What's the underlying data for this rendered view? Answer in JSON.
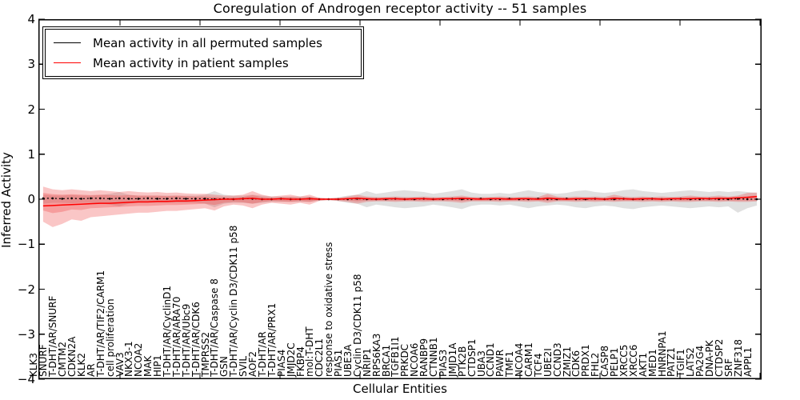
{
  "figure": {
    "title": "Coregulation of Androgen receptor activity -- 51 samples",
    "xlabel": "Cellular Entities",
    "ylabel": "Inferred Activity"
  },
  "legend": {
    "items": [
      {
        "label": "Mean activity in all permuted samples",
        "color": "#000000"
      },
      {
        "label": "Mean activity in patient samples",
        "color": "#ff0000"
      }
    ]
  },
  "axes": {
    "y_tick_values": [
      4,
      3,
      2,
      1,
      0,
      -1,
      -2,
      -3,
      -4
    ],
    "y_tick_labels": [
      "4",
      "3",
      "2",
      "1",
      "0",
      "−1",
      "−2",
      "−3",
      "−4"
    ]
  },
  "chart_data": {
    "type": "line",
    "title": "Coregulation of Androgen receptor activity -- 51 samples",
    "xlabel": "Cellular Entities",
    "ylabel": "Inferred Activity",
    "ylim": [
      -4,
      4
    ],
    "grid": false,
    "legend_position": "upper left",
    "categories": [
      "KLK3",
      "SNURF",
      "T-DHT/AR/SNURF",
      "CMTM2",
      "CDKN2A",
      "KLK2",
      "AR",
      "T-DHT/AR/TIF2/CARM1",
      "cell proliferation",
      "VAV3",
      "NKX3-1",
      "NCOA2",
      "MAK",
      "HIP1",
      "T-DHT/AR/CyclinD1",
      "T-DHT/AR/ARA70",
      "T-DHT/AR/Ubc9",
      "T-DHT/AR/CDK6",
      "TMPRSS2",
      "T-DHT/AR/Caspase 8",
      "GSN",
      "T-DHT/AR/Cyclin D3/CDK11 p58",
      "SVIL",
      "AOF2",
      "T-DHT/AR",
      "T-DHT/AR/PRX1",
      "PIAS4",
      "JMJD2C",
      "FKBP4",
      "mol:T-DHT",
      "CDC2L1",
      "response to oxidative stress",
      "PIAS1",
      "UBE3A",
      "Cyclin D3/CDK11 p58",
      "NRIP1",
      "RPS6KA3",
      "BRCA1",
      "TGFB1I1",
      "PRKDC",
      "NCOA6",
      "RANBP9",
      "CTNNB1",
      "PIAS3",
      "JMJD1A",
      "PTK2B",
      "CTDSP1",
      "UBA3",
      "CCND1",
      "PAWR",
      "TMF1",
      "NCOA4",
      "CARM1",
      "TCF4",
      "UBE2I",
      "CCND3",
      "ZMIZ1",
      "CDK6",
      "PRDX1",
      "FHL2",
      "CASP8",
      "PELP1",
      "XRCC5",
      "XRCC6",
      "AKT1",
      "MED1",
      "HNRNPA1",
      "PATZ1",
      "TGIF1",
      "LATS2",
      "PA2G4",
      "DNA-PK",
      "CTDSP2",
      "SRF",
      "ZNF318",
      "APPL1"
    ],
    "series": [
      {
        "name": "Mean activity in all permuted samples",
        "color": "#000000",
        "style": "dotted",
        "markers": true,
        "values": [
          0.02,
          0.02,
          0.01,
          0.02,
          0.01,
          0.02,
          0.02,
          0.01,
          0.02,
          0.01,
          0.01,
          0.02,
          0.01,
          0.01,
          0.02,
          0.01,
          0.01,
          0.01,
          0.0,
          0.01,
          0.0,
          0.01,
          0.01,
          0.0,
          0.0,
          0.01,
          0.0,
          0.0,
          0.01,
          0.0,
          0.0,
          0.0,
          0.0,
          0.01,
          0.0,
          0.0,
          0.0,
          0.01,
          0.0,
          0.0,
          0.01,
          0.0,
          0.0,
          0.01,
          0.0,
          0.0,
          0.01,
          0.0,
          0.0,
          0.01,
          0.0,
          0.0,
          0.01,
          0.0,
          0.0,
          0.01,
          0.0,
          0.0,
          0.01,
          0.0,
          0.0,
          0.01,
          0.0,
          0.0,
          0.01,
          0.0,
          0.0,
          0.01,
          0.0,
          0.0,
          0.01,
          0.0,
          0.0,
          0.01,
          0.0,
          0.0
        ]
      },
      {
        "name": "Mean activity in patient samples",
        "color": "#ff0000",
        "style": "solid",
        "markers": false,
        "values": [
          -0.15,
          -0.14,
          -0.13,
          -0.12,
          -0.11,
          -0.1,
          -0.09,
          -0.09,
          -0.08,
          -0.07,
          -0.06,
          -0.06,
          -0.05,
          -0.05,
          -0.04,
          -0.04,
          -0.03,
          -0.02,
          -0.01,
          0.0,
          0.0,
          0.01,
          0.02,
          0.0,
          0.0,
          0.01,
          0.0,
          0.0,
          0.01,
          0.0,
          0.0,
          0.0,
          0.01,
          0.02,
          0.01,
          0.0,
          0.01,
          0.01,
          0.0,
          0.01,
          0.01,
          0.0,
          0.01,
          0.01,
          0.02,
          0.01,
          0.0,
          0.01,
          0.01,
          0.0,
          0.01,
          0.01,
          0.0,
          0.02,
          0.01,
          0.0,
          0.01,
          0.01,
          0.01,
          0.0,
          0.02,
          0.01,
          0.0,
          0.01,
          0.01,
          0.0,
          0.01,
          0.01,
          0.01,
          0.02,
          0.01,
          0.02,
          0.02,
          0.03,
          0.04,
          0.06
        ]
      }
    ],
    "bands": [
      {
        "name": "permuted-samples-range",
        "fill": "#bbbbbb",
        "opacity": 0.45,
        "upper": [
          0.1,
          0.08,
          0.08,
          0.09,
          0.08,
          0.08,
          0.09,
          0.12,
          0.16,
          0.1,
          0.08,
          0.08,
          0.08,
          0.08,
          0.08,
          0.08,
          0.08,
          0.1,
          0.18,
          0.1,
          0.08,
          0.08,
          0.1,
          0.08,
          0.06,
          0.06,
          0.06,
          0.06,
          0.06,
          0.03,
          0.02,
          0.04,
          0.08,
          0.1,
          0.18,
          0.12,
          0.15,
          0.18,
          0.2,
          0.18,
          0.16,
          0.12,
          0.15,
          0.18,
          0.22,
          0.15,
          0.12,
          0.12,
          0.14,
          0.12,
          0.16,
          0.2,
          0.16,
          0.14,
          0.12,
          0.14,
          0.18,
          0.2,
          0.16,
          0.14,
          0.16,
          0.2,
          0.22,
          0.18,
          0.16,
          0.14,
          0.16,
          0.18,
          0.2,
          0.18,
          0.16,
          0.18,
          0.16,
          0.18,
          0.16,
          0.14
        ],
        "lower": [
          -0.1,
          -0.08,
          -0.08,
          -0.09,
          -0.08,
          -0.08,
          -0.09,
          -0.12,
          -0.16,
          -0.1,
          -0.08,
          -0.08,
          -0.08,
          -0.08,
          -0.08,
          -0.08,
          -0.08,
          -0.1,
          -0.18,
          -0.1,
          -0.08,
          -0.08,
          -0.1,
          -0.08,
          -0.06,
          -0.06,
          -0.06,
          -0.06,
          -0.06,
          -0.03,
          -0.02,
          -0.04,
          -0.08,
          -0.1,
          -0.18,
          -0.12,
          -0.15,
          -0.18,
          -0.2,
          -0.18,
          -0.16,
          -0.12,
          -0.15,
          -0.18,
          -0.22,
          -0.15,
          -0.12,
          -0.12,
          -0.14,
          -0.12,
          -0.16,
          -0.2,
          -0.16,
          -0.14,
          -0.12,
          -0.14,
          -0.18,
          -0.2,
          -0.16,
          -0.14,
          -0.16,
          -0.2,
          -0.22,
          -0.18,
          -0.16,
          -0.14,
          -0.16,
          -0.18,
          -0.2,
          -0.18,
          -0.16,
          -0.18,
          -0.16,
          -0.3,
          -0.2,
          -0.14
        ]
      },
      {
        "name": "patient-samples-range-outer",
        "fill": "#ee3333",
        "opacity": 0.28,
        "upper": [
          0.28,
          0.22,
          0.2,
          0.22,
          0.2,
          0.18,
          0.2,
          0.18,
          0.16,
          0.18,
          0.16,
          0.15,
          0.16,
          0.14,
          0.15,
          0.13,
          0.12,
          0.12,
          0.1,
          0.08,
          0.08,
          0.1,
          0.18,
          0.1,
          0.06,
          0.08,
          0.1,
          0.06,
          0.1,
          0.03,
          0.02,
          0.03,
          0.06,
          0.1,
          0.06,
          0.05,
          0.05,
          0.06,
          0.05,
          0.05,
          0.06,
          0.05,
          0.05,
          0.06,
          0.08,
          0.05,
          0.05,
          0.05,
          0.06,
          0.05,
          0.05,
          0.06,
          0.05,
          0.12,
          0.06,
          0.05,
          0.06,
          0.05,
          0.06,
          0.05,
          0.1,
          0.06,
          0.05,
          0.06,
          0.05,
          0.06,
          0.05,
          0.06,
          0.08,
          0.06,
          0.06,
          0.08,
          0.06,
          0.08,
          0.14,
          0.15
        ],
        "lower": [
          -0.5,
          -0.62,
          -0.55,
          -0.45,
          -0.48,
          -0.4,
          -0.38,
          -0.36,
          -0.34,
          -0.32,
          -0.3,
          -0.3,
          -0.28,
          -0.26,
          -0.26,
          -0.24,
          -0.22,
          -0.2,
          -0.25,
          -0.16,
          -0.12,
          -0.14,
          -0.2,
          -0.12,
          -0.08,
          -0.1,
          -0.12,
          -0.08,
          -0.12,
          -0.04,
          -0.02,
          -0.04,
          -0.06,
          -0.1,
          -0.06,
          -0.05,
          -0.05,
          -0.06,
          -0.05,
          -0.05,
          -0.06,
          -0.05,
          -0.05,
          -0.06,
          -0.08,
          -0.05,
          -0.05,
          -0.05,
          -0.06,
          -0.05,
          -0.05,
          -0.06,
          -0.05,
          -0.08,
          -0.05,
          -0.05,
          -0.06,
          -0.05,
          -0.06,
          -0.05,
          -0.06,
          -0.05,
          -0.05,
          -0.06,
          -0.05,
          -0.06,
          -0.05,
          -0.06,
          -0.06,
          -0.05,
          -0.05,
          -0.06,
          -0.05,
          -0.06,
          -0.06,
          -0.05
        ]
      },
      {
        "name": "patient-samples-range-inner",
        "fill": "#ee3333",
        "opacity": 0.28,
        "upper": [
          0.14,
          0.11,
          0.1,
          0.11,
          0.1,
          0.09,
          0.1,
          0.09,
          0.08,
          0.09,
          0.08,
          0.08,
          0.08,
          0.07,
          0.08,
          0.07,
          0.06,
          0.06,
          0.05,
          0.04,
          0.04,
          0.05,
          0.09,
          0.05,
          0.03,
          0.04,
          0.05,
          0.03,
          0.05,
          0.02,
          0.01,
          0.02,
          0.03,
          0.05,
          0.03,
          0.03,
          0.03,
          0.03,
          0.03,
          0.03,
          0.03,
          0.03,
          0.03,
          0.03,
          0.04,
          0.03,
          0.03,
          0.03,
          0.03,
          0.03,
          0.03,
          0.03,
          0.03,
          0.06,
          0.03,
          0.03,
          0.03,
          0.03,
          0.03,
          0.03,
          0.05,
          0.03,
          0.03,
          0.03,
          0.03,
          0.03,
          0.03,
          0.03,
          0.04,
          0.03,
          0.03,
          0.04,
          0.03,
          0.04,
          0.07,
          0.08
        ],
        "lower": [
          -0.25,
          -0.31,
          -0.28,
          -0.23,
          -0.24,
          -0.2,
          -0.19,
          -0.18,
          -0.17,
          -0.16,
          -0.15,
          -0.15,
          -0.14,
          -0.13,
          -0.13,
          -0.12,
          -0.11,
          -0.1,
          -0.13,
          -0.08,
          -0.06,
          -0.07,
          -0.1,
          -0.06,
          -0.04,
          -0.05,
          -0.06,
          -0.04,
          -0.06,
          -0.02,
          -0.01,
          -0.02,
          -0.03,
          -0.05,
          -0.03,
          -0.03,
          -0.03,
          -0.03,
          -0.03,
          -0.03,
          -0.03,
          -0.03,
          -0.03,
          -0.03,
          -0.04,
          -0.03,
          -0.03,
          -0.03,
          -0.03,
          -0.03,
          -0.03,
          -0.03,
          -0.03,
          -0.04,
          -0.03,
          -0.03,
          -0.03,
          -0.03,
          -0.03,
          -0.03,
          -0.03,
          -0.03,
          -0.03,
          -0.03,
          -0.03,
          -0.03,
          -0.03,
          -0.03,
          -0.03,
          -0.03,
          -0.03,
          -0.03,
          -0.03,
          -0.03,
          -0.03,
          -0.03
        ]
      }
    ]
  }
}
